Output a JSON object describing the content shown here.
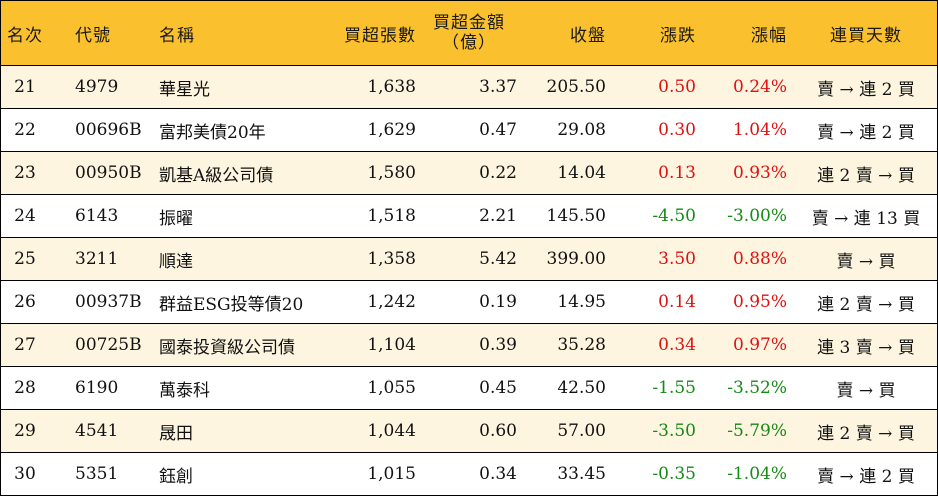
{
  "headers": {
    "rank": "名次",
    "code": "代號",
    "name": "名稱",
    "buy_lots": "買超張數",
    "buy_amount": "買超金額",
    "buy_amount_unit": "（億）",
    "close": "收盤",
    "change": "漲跌",
    "change_pct": "漲幅",
    "streak": "連買天數"
  },
  "colors": {
    "header_bg": "#fbc02d",
    "row_alt_bg": "#fdf5e0",
    "up": "#e01010",
    "down": "#158a15"
  },
  "rows": [
    {
      "rank": "21",
      "code": "4979",
      "name": "華星光",
      "buy_lots": "1,638",
      "buy_amount": "3.37",
      "close": "205.50",
      "change": "0.50",
      "change_pct": "0.24%",
      "streak": "賣 → 連 2 買",
      "dir": "up"
    },
    {
      "rank": "22",
      "code": "00696B",
      "name": "富邦美債20年",
      "buy_lots": "1,629",
      "buy_amount": "0.47",
      "close": "29.08",
      "change": "0.30",
      "change_pct": "1.04%",
      "streak": "賣 → 連 2 買",
      "dir": "up"
    },
    {
      "rank": "23",
      "code": "00950B",
      "name": "凱基A級公司債",
      "buy_lots": "1,580",
      "buy_amount": "0.22",
      "close": "14.04",
      "change": "0.13",
      "change_pct": "0.93%",
      "streak": "連 2 賣 → 買",
      "dir": "up"
    },
    {
      "rank": "24",
      "code": "6143",
      "name": "振曜",
      "buy_lots": "1,518",
      "buy_amount": "2.21",
      "close": "145.50",
      "change": "-4.50",
      "change_pct": "-3.00%",
      "streak": "賣 → 連 13 買",
      "dir": "down"
    },
    {
      "rank": "25",
      "code": "3211",
      "name": "順達",
      "buy_lots": "1,358",
      "buy_amount": "5.42",
      "close": "399.00",
      "change": "3.50",
      "change_pct": "0.88%",
      "streak": "賣 → 買",
      "dir": "up"
    },
    {
      "rank": "26",
      "code": "00937B",
      "name": "群益ESG投等債20",
      "buy_lots": "1,242",
      "buy_amount": "0.19",
      "close": "14.95",
      "change": "0.14",
      "change_pct": "0.95%",
      "streak": "連 2 賣 → 買",
      "dir": "up"
    },
    {
      "rank": "27",
      "code": "00725B",
      "name": "國泰投資級公司債",
      "buy_lots": "1,104",
      "buy_amount": "0.39",
      "close": "35.28",
      "change": "0.34",
      "change_pct": "0.97%",
      "streak": "連 3 賣 → 買",
      "dir": "up"
    },
    {
      "rank": "28",
      "code": "6190",
      "name": "萬泰科",
      "buy_lots": "1,055",
      "buy_amount": "0.45",
      "close": "42.50",
      "change": "-1.55",
      "change_pct": "-3.52%",
      "streak": "賣 → 買",
      "dir": "down"
    },
    {
      "rank": "29",
      "code": "4541",
      "name": "晟田",
      "buy_lots": "1,044",
      "buy_amount": "0.60",
      "close": "57.00",
      "change": "-3.50",
      "change_pct": "-5.79%",
      "streak": "連 2 賣 → 買",
      "dir": "down"
    },
    {
      "rank": "30",
      "code": "5351",
      "name": "鈺創",
      "buy_lots": "1,015",
      "buy_amount": "0.34",
      "close": "33.45",
      "change": "-0.35",
      "change_pct": "-1.04%",
      "streak": "賣 → 連 2 買",
      "dir": "down"
    }
  ]
}
